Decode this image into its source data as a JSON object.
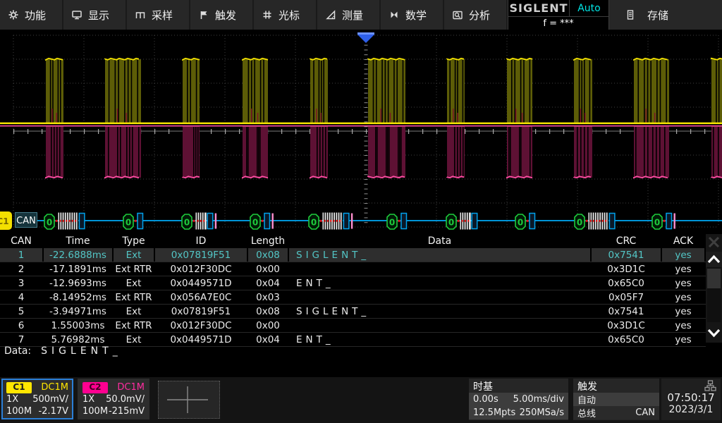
{
  "menu": {
    "items": [
      {
        "label": "功能",
        "icon": "gear-icon"
      },
      {
        "label": "显示",
        "icon": "display-icon"
      },
      {
        "label": "采样",
        "icon": "sampling-icon"
      },
      {
        "label": "触发",
        "icon": "trigger-flag-icon"
      },
      {
        "label": "光标",
        "icon": "cursor-grid-icon"
      },
      {
        "label": "测量",
        "icon": "measure-icon"
      },
      {
        "label": "数学",
        "icon": "math-icon"
      },
      {
        "label": "分析",
        "icon": "analysis-icon"
      }
    ],
    "brand": {
      "logo": "SIGLENT",
      "status": "Auto",
      "freq": "f = ***"
    },
    "storage": {
      "label": "存储",
      "icon": "storage-icon"
    }
  },
  "chart_data": {
    "type": "oscilloscope-can-bus",
    "time_per_div_ms": 5,
    "divisions": {
      "horizontal": 10,
      "vertical": 8
    },
    "trigger_delay": "0.00s",
    "channels": [
      {
        "name": "C1",
        "color": "#f5e400",
        "scale": "500mV/",
        "offset": "-2.17V"
      },
      {
        "name": "C2",
        "color": "#ff0090",
        "scale": "50.0mV/",
        "offset": "-215mV"
      }
    ],
    "bursts_ms": [
      {
        "t": -22.7,
        "w": 1.25
      },
      {
        "t": -18.5,
        "w": 2.55
      },
      {
        "t": -13.0,
        "w": 1.2
      },
      {
        "t": -8.75,
        "w": 1.8
      },
      {
        "t": -3.95,
        "w": 1.25
      },
      {
        "t": 0.15,
        "w": 2.65
      },
      {
        "t": 5.75,
        "w": 1.25
      },
      {
        "t": 10.0,
        "w": 1.8
      },
      {
        "t": 14.75,
        "w": 1.3
      },
      {
        "t": 19.0,
        "w": 2.5
      },
      {
        "t": 24.5,
        "w": 0.8
      }
    ],
    "decoded_frames": [
      {
        "t": -22.8,
        "bytes": 8,
        "ack_pink": false
      },
      {
        "t": -17.2,
        "bytes": 0,
        "ack_pink": false
      },
      {
        "t": -13.05,
        "bytes": 4,
        "ack_pink": true
      },
      {
        "t": -8.2,
        "bytes": 0,
        "ack_pink": true
      },
      {
        "t": -4.05,
        "bytes": 8,
        "ack_pink": true
      },
      {
        "t": 1.5,
        "bytes": 0,
        "ack_pink": false
      },
      {
        "t": 5.7,
        "bytes": 4,
        "ack_pink": false
      },
      {
        "t": 10.6,
        "bytes": 0,
        "ack_pink": false
      },
      {
        "t": 14.8,
        "bytes": 8,
        "ack_pink": false
      },
      {
        "t": 20.3,
        "bytes": 0,
        "ack_pink": true
      }
    ]
  },
  "decode": {
    "channel": "C1",
    "bus": "CAN",
    "glyph": "0"
  },
  "table": {
    "columns": [
      "CAN",
      "Time",
      "Type",
      "ID",
      "Length",
      "Data",
      "CRC",
      "ACK"
    ],
    "selected_index": 0,
    "rows": [
      [
        "1",
        "-22.6888ms",
        "Ext",
        "0x07819F51",
        "0x08",
        "SIGLENT_",
        "0x7541",
        "yes"
      ],
      [
        "2",
        "-17.1891ms",
        "Ext RTR",
        "0x012F30DC",
        "0x00",
        "",
        "0x3D1C",
        "yes"
      ],
      [
        "3",
        "-12.9693ms",
        "Ext",
        "0x0449571D",
        "0x04",
        "ENT_",
        "0x65C0",
        "yes"
      ],
      [
        "4",
        "-8.14952ms",
        "Ext RTR",
        "0x056A7E0C",
        "0x03",
        "",
        "0x05F7",
        "yes"
      ],
      [
        "5",
        "-3.94971ms",
        "Ext",
        "0x07819F51",
        "0x08",
        "SIGLENT_",
        "0x7541",
        "yes"
      ],
      [
        "6",
        "1.55003ms",
        "Ext RTR",
        "0x012F30DC",
        "0x00",
        "",
        "0x3D1C",
        "yes"
      ],
      [
        "7",
        "5.76982ms",
        "Ext",
        "0x0449571D",
        "0x04",
        "ENT_",
        "0x65C0",
        "yes"
      ]
    ]
  },
  "data_line": {
    "label": "Data:",
    "value": "SIGLENT_"
  },
  "status_bar": {
    "ch1": {
      "name": "C1",
      "coupling": "DC1M",
      "probe": "1X",
      "scale": "500mV/",
      "bandwidth": "100M",
      "offset": "-2.17V",
      "color": "#ffe600"
    },
    "ch2": {
      "name": "C2",
      "coupling": "DC1M",
      "probe": "1X",
      "scale": "50.0mV/",
      "bandwidth": "100M",
      "offset": "-215mV",
      "color": "#ff0090"
    },
    "timebase": {
      "title": "时基",
      "delay": "0.00s",
      "scale": "5.00ms/div",
      "memory": "12.5Mpts",
      "samplerate": "250MSa/s"
    },
    "trigger": {
      "title": "触发",
      "mode": "自动",
      "source": "总线",
      "bus_type": "CAN"
    },
    "clock": {
      "time": "07:50:17",
      "date": "2023/3/1"
    }
  }
}
